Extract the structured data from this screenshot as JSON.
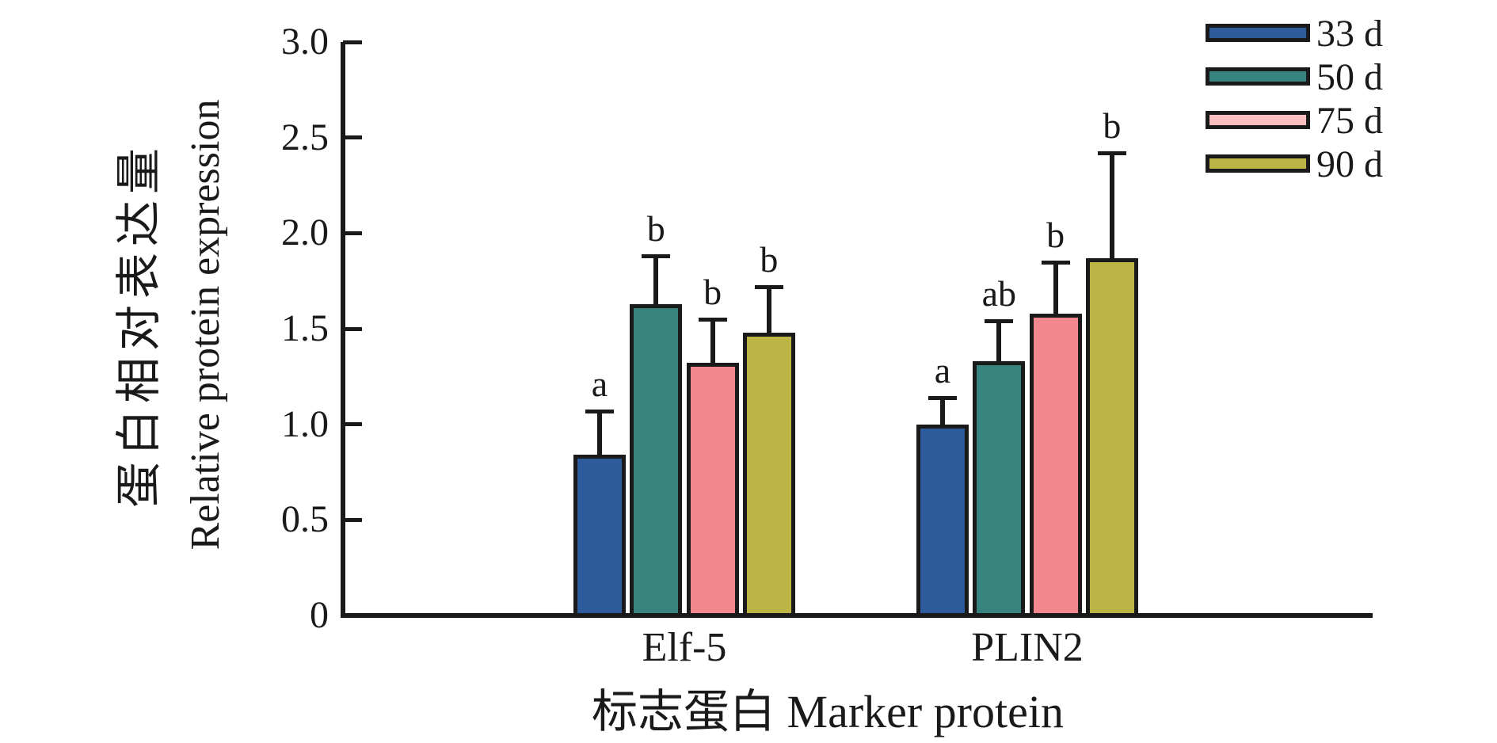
{
  "figure": {
    "y_axis": {
      "title_zh": "蛋白相对表达量",
      "title_en": "Relative protein expression",
      "tick_labels": [
        "3.0",
        "2.5",
        "2.0",
        "1.5",
        "1.0",
        "0.5",
        "0"
      ]
    },
    "x_axis": {
      "title": "标志蛋白 Marker protein",
      "categories": [
        "Elf-5",
        "PLIN2"
      ]
    },
    "legend": {
      "position": "top-right",
      "items": [
        {
          "label": "33 d",
          "swatch_color": "#2d5b9c"
        },
        {
          "label": "50 d",
          "swatch_color": "#37837d"
        },
        {
          "label": "75 d",
          "swatch_color": "#f9bec0"
        },
        {
          "label": "90 d",
          "swatch_color": "#bcb545"
        }
      ]
    }
  },
  "chart_data": {
    "type": "bar",
    "title": "",
    "categories": [
      "Elf-5",
      "PLIN2"
    ],
    "series": [
      {
        "name": "33 d",
        "color": "#2d5b9c",
        "values": [
          0.84,
          1.0
        ],
        "errors": [
          0.23,
          0.14
        ],
        "sig_letters": [
          "a",
          "a"
        ]
      },
      {
        "name": "50 d",
        "color": "#37837d",
        "values": [
          1.63,
          1.33
        ],
        "errors": [
          0.25,
          0.21
        ],
        "sig_letters": [
          "b",
          "ab"
        ]
      },
      {
        "name": "75 d",
        "color": "#f2878e",
        "values": [
          1.32,
          1.58
        ],
        "errors": [
          0.23,
          0.27
        ],
        "sig_letters": [
          "b",
          "b"
        ]
      },
      {
        "name": "90 d",
        "color": "#bcb545",
        "values": [
          1.48,
          1.87
        ],
        "errors": [
          0.24,
          0.55
        ],
        "sig_letters": [
          "b",
          "b"
        ]
      }
    ],
    "xlabel": "标志蛋白 Marker protein",
    "ylabel_zh": "蛋白相对表达量",
    "ylabel_en": "Relative protein expression",
    "ylim": [
      0,
      3.0
    ],
    "ytick_step": 0.5,
    "grid": false,
    "error_bars": "upper",
    "bar_outline_color": "#1a1a1a",
    "legend_position": "top-right"
  }
}
